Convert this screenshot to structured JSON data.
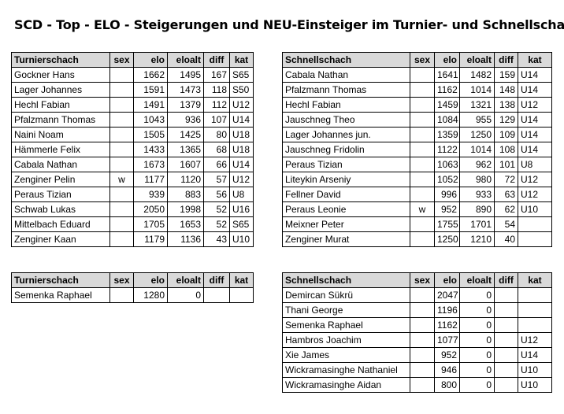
{
  "title": "SCD - Top - ELO - Steigerungen und NEU-Einsteiger im Turnier- und Schnellschach",
  "columns": [
    "sex",
    "elo",
    "eloalt",
    "diff",
    "kat"
  ],
  "tables": {
    "turnier_top": {
      "name_header": "Turnierschach",
      "rows": [
        {
          "name": "Gockner Hans",
          "sex": "",
          "elo": "1662",
          "eloalt": "1495",
          "diff": "167",
          "kat": "S65"
        },
        {
          "name": "Lager Johannes",
          "sex": "",
          "elo": "1591",
          "eloalt": "1473",
          "diff": "118",
          "kat": "S50"
        },
        {
          "name": "Hechl Fabian",
          "sex": "",
          "elo": "1491",
          "eloalt": "1379",
          "diff": "112",
          "kat": "U12"
        },
        {
          "name": "Pfalzmann Thomas",
          "sex": "",
          "elo": "1043",
          "eloalt": "936",
          "diff": "107",
          "kat": "U14"
        },
        {
          "name": "Naini Noam",
          "sex": "",
          "elo": "1505",
          "eloalt": "1425",
          "diff": "80",
          "kat": "U18"
        },
        {
          "name": "Hämmerle Felix",
          "sex": "",
          "elo": "1433",
          "eloalt": "1365",
          "diff": "68",
          "kat": "U18"
        },
        {
          "name": "Cabala Nathan",
          "sex": "",
          "elo": "1673",
          "eloalt": "1607",
          "diff": "66",
          "kat": "U14"
        },
        {
          "name": "Zenginer Pelin",
          "sex": "w",
          "elo": "1177",
          "eloalt": "1120",
          "diff": "57",
          "kat": "U12"
        },
        {
          "name": "Peraus Tizian",
          "sex": "",
          "elo": "939",
          "eloalt": "883",
          "diff": "56",
          "kat": "U8"
        },
        {
          "name": "Schwab Lukas",
          "sex": "",
          "elo": "2050",
          "eloalt": "1998",
          "diff": "52",
          "kat": "U16"
        },
        {
          "name": "Mittelbach Eduard",
          "sex": "",
          "elo": "1705",
          "eloalt": "1653",
          "diff": "52",
          "kat": "S65"
        },
        {
          "name": "Zenginer Kaan",
          "sex": "",
          "elo": "1179",
          "eloalt": "1136",
          "diff": "43",
          "kat": "U10"
        }
      ]
    },
    "schnell_top": {
      "name_header": "Schnellschach",
      "rows": [
        {
          "name": "Cabala Nathan",
          "sex": "",
          "elo": "1641",
          "eloalt": "1482",
          "diff": "159",
          "kat": "U14"
        },
        {
          "name": "Pfalzmann Thomas",
          "sex": "",
          "elo": "1162",
          "eloalt": "1014",
          "diff": "148",
          "kat": "U14"
        },
        {
          "name": "Hechl Fabian",
          "sex": "",
          "elo": "1459",
          "eloalt": "1321",
          "diff": "138",
          "kat": "U12"
        },
        {
          "name": "Jauschneg Theo",
          "sex": "",
          "elo": "1084",
          "eloalt": "955",
          "diff": "129",
          "kat": "U14"
        },
        {
          "name": "Lager Johannes jun.",
          "sex": "",
          "elo": "1359",
          "eloalt": "1250",
          "diff": "109",
          "kat": "U14"
        },
        {
          "name": "Jauschneg Fridolin",
          "sex": "",
          "elo": "1122",
          "eloalt": "1014",
          "diff": "108",
          "kat": "U14"
        },
        {
          "name": "Peraus Tizian",
          "sex": "",
          "elo": "1063",
          "eloalt": "962",
          "diff": "101",
          "kat": "U8"
        },
        {
          "name": "Liteykin Arseniy",
          "sex": "",
          "elo": "1052",
          "eloalt": "980",
          "diff": "72",
          "kat": "U12"
        },
        {
          "name": "Fellner David",
          "sex": "",
          "elo": "996",
          "eloalt": "933",
          "diff": "63",
          "kat": "U12"
        },
        {
          "name": "Peraus Leonie",
          "sex": "w",
          "elo": "952",
          "eloalt": "890",
          "diff": "62",
          "kat": "U10"
        },
        {
          "name": "Meixner Peter",
          "sex": "",
          "elo": "1755",
          "eloalt": "1701",
          "diff": "54",
          "kat": ""
        },
        {
          "name": "Zenginer Murat",
          "sex": "",
          "elo": "1250",
          "eloalt": "1210",
          "diff": "40",
          "kat": ""
        }
      ]
    },
    "turnier_new": {
      "name_header": "Turnierschach",
      "rows": [
        {
          "name": "Semenka Raphael",
          "sex": "",
          "elo": "1280",
          "eloalt": "0",
          "diff": "",
          "kat": ""
        }
      ]
    },
    "schnell_new": {
      "name_header": "Schnellschach",
      "rows": [
        {
          "name": "Demircan Sükrü",
          "sex": "",
          "elo": "2047",
          "eloalt": "0",
          "diff": "",
          "kat": ""
        },
        {
          "name": "Thani George",
          "sex": "",
          "elo": "1196",
          "eloalt": "0",
          "diff": "",
          "kat": ""
        },
        {
          "name": "Semenka Raphael",
          "sex": "",
          "elo": "1162",
          "eloalt": "0",
          "diff": "",
          "kat": ""
        },
        {
          "name": "Hambros Joachim",
          "sex": "",
          "elo": "1077",
          "eloalt": "0",
          "diff": "",
          "kat": "U12"
        },
        {
          "name": "Xie James",
          "sex": "",
          "elo": "952",
          "eloalt": "0",
          "diff": "",
          "kat": "U14"
        },
        {
          "name": "Wickramasinghe Nathaniel",
          "sex": "",
          "elo": "946",
          "eloalt": "0",
          "diff": "",
          "kat": "U10"
        },
        {
          "name": "Wickramasinghe Aidan",
          "sex": "",
          "elo": "800",
          "eloalt": "0",
          "diff": "",
          "kat": "U10"
        }
      ]
    }
  }
}
